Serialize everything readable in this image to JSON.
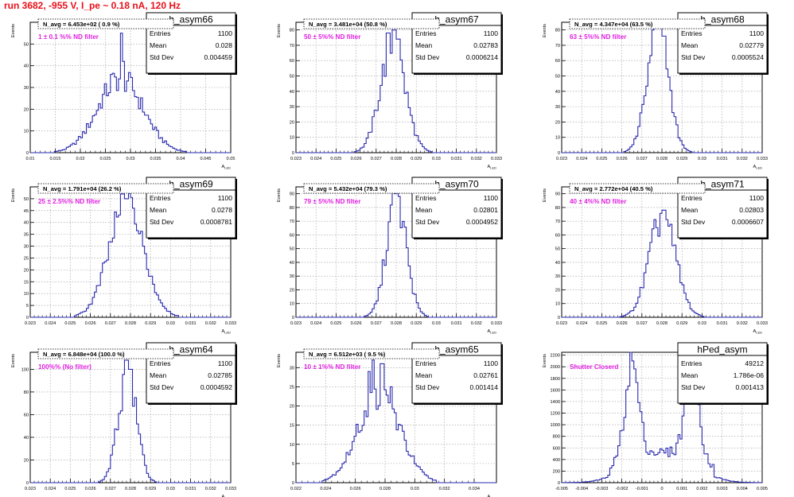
{
  "header": {
    "run_title": "run 3682,  -955 V, I_pe ~ 0.18 nA, 120 Hz"
  },
  "colors": {
    "hist_line": "#2a2ab0",
    "label_magenta": "#e020e0",
    "run_title": "#e8101a",
    "grid": "#9a9a9a"
  },
  "panels": [
    {
      "chart_data": {
        "type": "step-histogram",
        "title": "h_asym66",
        "stats": [
          [
            "Entries",
            "1100"
          ],
          [
            "Mean",
            "0.028"
          ],
          [
            "Std Dev",
            "0.004459"
          ]
        ],
        "navg": "N_avg = 6.453e+02 ( 0.9 %)",
        "filter": "1 ± 0.1 %% ND filter",
        "xlabel": "A_LED",
        "ylabel": "Events",
        "xlim": [
          0.01,
          0.05
        ],
        "ylim": [
          0,
          60
        ],
        "xticks": [
          "0.01",
          "0.015",
          "0.02",
          "0.025",
          "0.03",
          "0.035",
          "0.04",
          "0.045",
          "0.05"
        ],
        "yticks": [
          "0",
          "10",
          "20",
          "30",
          "40",
          "50"
        ],
        "shape": {
          "type": "gauss",
          "mean": 0.028,
          "sigma": 0.0045,
          "peak": 34
        },
        "spikes": [
          [
            0.0282,
            55
          ],
          [
            0.0287,
            42
          ],
          [
            0.0262,
            36
          ],
          [
            0.0295,
            33
          ]
        ],
        "grid": true
      }
    },
    {
      "chart_data": {
        "type": "step-histogram",
        "title": "h_asym67",
        "stats": [
          [
            "Entries",
            "1100"
          ],
          [
            "Mean",
            "0.02783"
          ],
          [
            "Std Dev",
            "0.0006214"
          ]
        ],
        "navg": "N_avg = 3.481e+04 (50.8 %)",
        "filter": "50 ± 5%% ND filter",
        "xlabel": "A_LED",
        "ylabel": "Events",
        "xlim": [
          0.023,
          0.033
        ],
        "ylim": [
          0,
          85
        ],
        "xticks": [
          "0.023",
          "0.024",
          "0.025",
          "0.026",
          "0.027",
          "0.028",
          "0.029",
          "0.03",
          "0.031",
          "0.032",
          "0.033"
        ],
        "yticks": [
          "0",
          "10",
          "20",
          "30",
          "40",
          "50",
          "60",
          "70",
          "80"
        ],
        "shape": {
          "type": "gauss",
          "mean": 0.02783,
          "sigma": 0.00062,
          "peak": 70
        },
        "spikes": [
          [
            0.0276,
            78
          ],
          [
            0.0279,
            80
          ],
          [
            0.0281,
            74
          ]
        ],
        "grid": true
      }
    },
    {
      "chart_data": {
        "type": "step-histogram",
        "title": "h_asym68",
        "stats": [
          [
            "Entries",
            "1100"
          ],
          [
            "Mean",
            "0.02779"
          ],
          [
            "Std Dev",
            "0.0005524"
          ]
        ],
        "navg": "N_avg = 4.347e+04 (63.5 %)",
        "filter": "63 ± 5%% ND filter",
        "xlabel": "A_LED",
        "ylabel": "Events",
        "xlim": [
          0.023,
          0.033
        ],
        "ylim": [
          0,
          85
        ],
        "xticks": [
          "0.023",
          "0.024",
          "0.025",
          "0.026",
          "0.027",
          "0.028",
          "0.029",
          "0.03",
          "0.031",
          "0.032",
          "0.033"
        ],
        "yticks": [
          "0",
          "10",
          "20",
          "30",
          "40",
          "50",
          "60",
          "70",
          "80"
        ],
        "shape": {
          "type": "gauss",
          "mean": 0.02779,
          "sigma": 0.00055,
          "peak": 72
        },
        "spikes": [
          [
            0.0276,
            80
          ],
          [
            0.0279,
            82
          ],
          [
            0.0281,
            76
          ]
        ],
        "grid": true
      }
    },
    {
      "chart_data": {
        "type": "step-histogram",
        "title": "h_asym69",
        "stats": [
          [
            "Entries",
            "1100"
          ],
          [
            "Mean",
            "0.0278"
          ],
          [
            "Std Dev",
            "0.0008781"
          ]
        ],
        "navg": "N_avg = 1.791e+04 (26.2 %)",
        "filter": "25 ± 2.5%% ND filter",
        "xlabel": "A_LED",
        "ylabel": "Events",
        "xlim": [
          0.023,
          0.033
        ],
        "ylim": [
          0,
          55
        ],
        "xticks": [
          "0.023",
          "0.024",
          "0.025",
          "0.026",
          "0.027",
          "0.028",
          "0.029",
          "0.03",
          "0.031",
          "0.032",
          "0.033"
        ],
        "yticks": [
          "0",
          "5",
          "10",
          "15",
          "20",
          "25",
          "30",
          "35",
          "40",
          "45",
          "50"
        ],
        "shape": {
          "type": "gauss",
          "mean": 0.0278,
          "sigma": 0.00088,
          "peak": 46
        },
        "spikes": [
          [
            0.0276,
            52
          ],
          [
            0.0278,
            50
          ],
          [
            0.0281,
            46
          ]
        ],
        "grid": true
      }
    },
    {
      "chart_data": {
        "type": "step-histogram",
        "title": "h_asym70",
        "stats": [
          [
            "Entries",
            "1100"
          ],
          [
            "Mean",
            "0.02801"
          ],
          [
            "Std Dev",
            "0.0004952"
          ]
        ],
        "navg": "N_avg = 5.432e+04 (79.3 %)",
        "filter": "79 ± 5%% ND filter",
        "xlabel": "A_LED",
        "ylabel": "Events",
        "xlim": [
          0.023,
          0.033
        ],
        "ylim": [
          0,
          95
        ],
        "xticks": [
          "0.023",
          "0.024",
          "0.025",
          "0.026",
          "0.027",
          "0.028",
          "0.029",
          "0.03",
          "0.031",
          "0.032",
          "0.033"
        ],
        "yticks": [
          "0",
          "10",
          "20",
          "30",
          "40",
          "50",
          "60",
          "70",
          "80",
          "90"
        ],
        "shape": {
          "type": "gauss",
          "mean": 0.02801,
          "sigma": 0.0005,
          "peak": 85
        },
        "spikes": [
          [
            0.0279,
            90
          ],
          [
            0.0281,
            88
          ]
        ],
        "grid": true
      }
    },
    {
      "chart_data": {
        "type": "step-histogram",
        "title": "h_asym71",
        "stats": [
          [
            "Entries",
            "1100"
          ],
          [
            "Mean",
            "0.02803"
          ],
          [
            "Std Dev",
            "0.0006607"
          ]
        ],
        "navg": "N_avg = 2.772e+04 (40.5 %)",
        "filter": "40 ± 4%% ND filter",
        "xlabel": "A_LED",
        "ylabel": "Events",
        "xlim": [
          0.023,
          0.033
        ],
        "ylim": [
          0,
          95
        ],
        "xticks": [
          "0.023",
          "0.024",
          "0.025",
          "0.026",
          "0.027",
          "0.028",
          "0.029",
          "0.03",
          "0.031",
          "0.032",
          "0.033"
        ],
        "yticks": [
          "0",
          "10",
          "20",
          "30",
          "40",
          "50",
          "60",
          "70",
          "80",
          "90"
        ],
        "shape": {
          "type": "gauss",
          "mean": 0.02803,
          "sigma": 0.00066,
          "peak": 72
        },
        "spikes": [
          [
            0.0281,
            78
          ]
        ],
        "grid": true
      }
    },
    {
      "chart_data": {
        "type": "step-histogram",
        "title": "h_asym64",
        "stats": [
          [
            "Entries",
            "1100"
          ],
          [
            "Mean",
            "0.02785"
          ],
          [
            "Std Dev",
            "0.0004592"
          ]
        ],
        "navg": "N_avg = 6.848e+04 (100.0 %)",
        "filter": "100%% (No filter)",
        "xlabel": "A_LED",
        "ylabel": "Events",
        "xlim": [
          0.023,
          0.033
        ],
        "ylim": [
          0,
          115
        ],
        "xticks": [
          "0.023",
          "0.024",
          "0.025",
          "0.026",
          "0.027",
          "0.028",
          "0.029",
          "0.03",
          "0.031",
          "0.032",
          "0.033"
        ],
        "yticks": [
          "0",
          "20",
          "40",
          "60",
          "80",
          "100"
        ],
        "shape": {
          "type": "gauss",
          "mean": 0.02785,
          "sigma": 0.00046,
          "peak": 95
        },
        "spikes": [
          [
            0.0278,
            108
          ],
          [
            0.028,
            100
          ]
        ],
        "grid": true
      }
    },
    {
      "chart_data": {
        "type": "step-histogram",
        "title": "h_asym65",
        "stats": [
          [
            "Entries",
            "1100"
          ],
          [
            "Mean",
            "0.02761"
          ],
          [
            "Std Dev",
            "0.001414"
          ]
        ],
        "navg": "N_avg = 6.512e+03 ( 9.5 %)",
        "filter": "10 ± 1%% ND filter",
        "xlabel": "A_LED",
        "ylabel": "Events",
        "xlim": [
          0.022,
          0.0355
        ],
        "ylim": [
          0,
          34
        ],
        "xticks": [
          "0.022",
          "0.024",
          "0.026",
          "0.028",
          "0.03",
          "0.032",
          "0.034"
        ],
        "yticks": [
          "0",
          "5",
          "10",
          "15",
          "20",
          "25",
          "30"
        ],
        "shape": {
          "type": "gauss",
          "mean": 0.02761,
          "sigma": 0.0014,
          "peak": 23
        },
        "spikes": [
          [
            0.0272,
            32
          ],
          [
            0.0278,
            31
          ],
          [
            0.0269,
            29
          ],
          [
            0.0284,
            25
          ]
        ],
        "grid": true
      }
    },
    {
      "chart_data": {
        "type": "step-histogram",
        "title": "hPed_asym",
        "stats": [
          [
            "Entries",
            "49212"
          ],
          [
            "Mean",
            "1.786e-06"
          ],
          [
            "Std Dev",
            "0.001413"
          ]
        ],
        "navg": "",
        "filter": "Shutter Closerd",
        "xlabel": "",
        "ylabel": "Events",
        "xlim": [
          -0.005,
          0.005
        ],
        "ylim": [
          0,
          2250
        ],
        "xticks": [
          "-0.005",
          "-0.004",
          "-0.003",
          "-0.002",
          "-0.001",
          "0",
          "0.001",
          "0.002",
          "0.003",
          "0.004",
          "0.005"
        ],
        "yticks": [
          "0",
          "200",
          "400",
          "600",
          "800",
          "1000",
          "1200",
          "1400",
          "1600",
          "1800",
          "2000",
          "2200"
        ],
        "shape": {
          "type": "bimodal",
          "m1": -0.0015,
          "m2": 0.0015,
          "sigma": 0.00033,
          "peak": 1550,
          "base": 520
        },
        "spikes": [
          [
            -0.0015,
            2100
          ],
          [
            0.0012,
            1950
          ]
        ],
        "grid": true
      }
    }
  ]
}
